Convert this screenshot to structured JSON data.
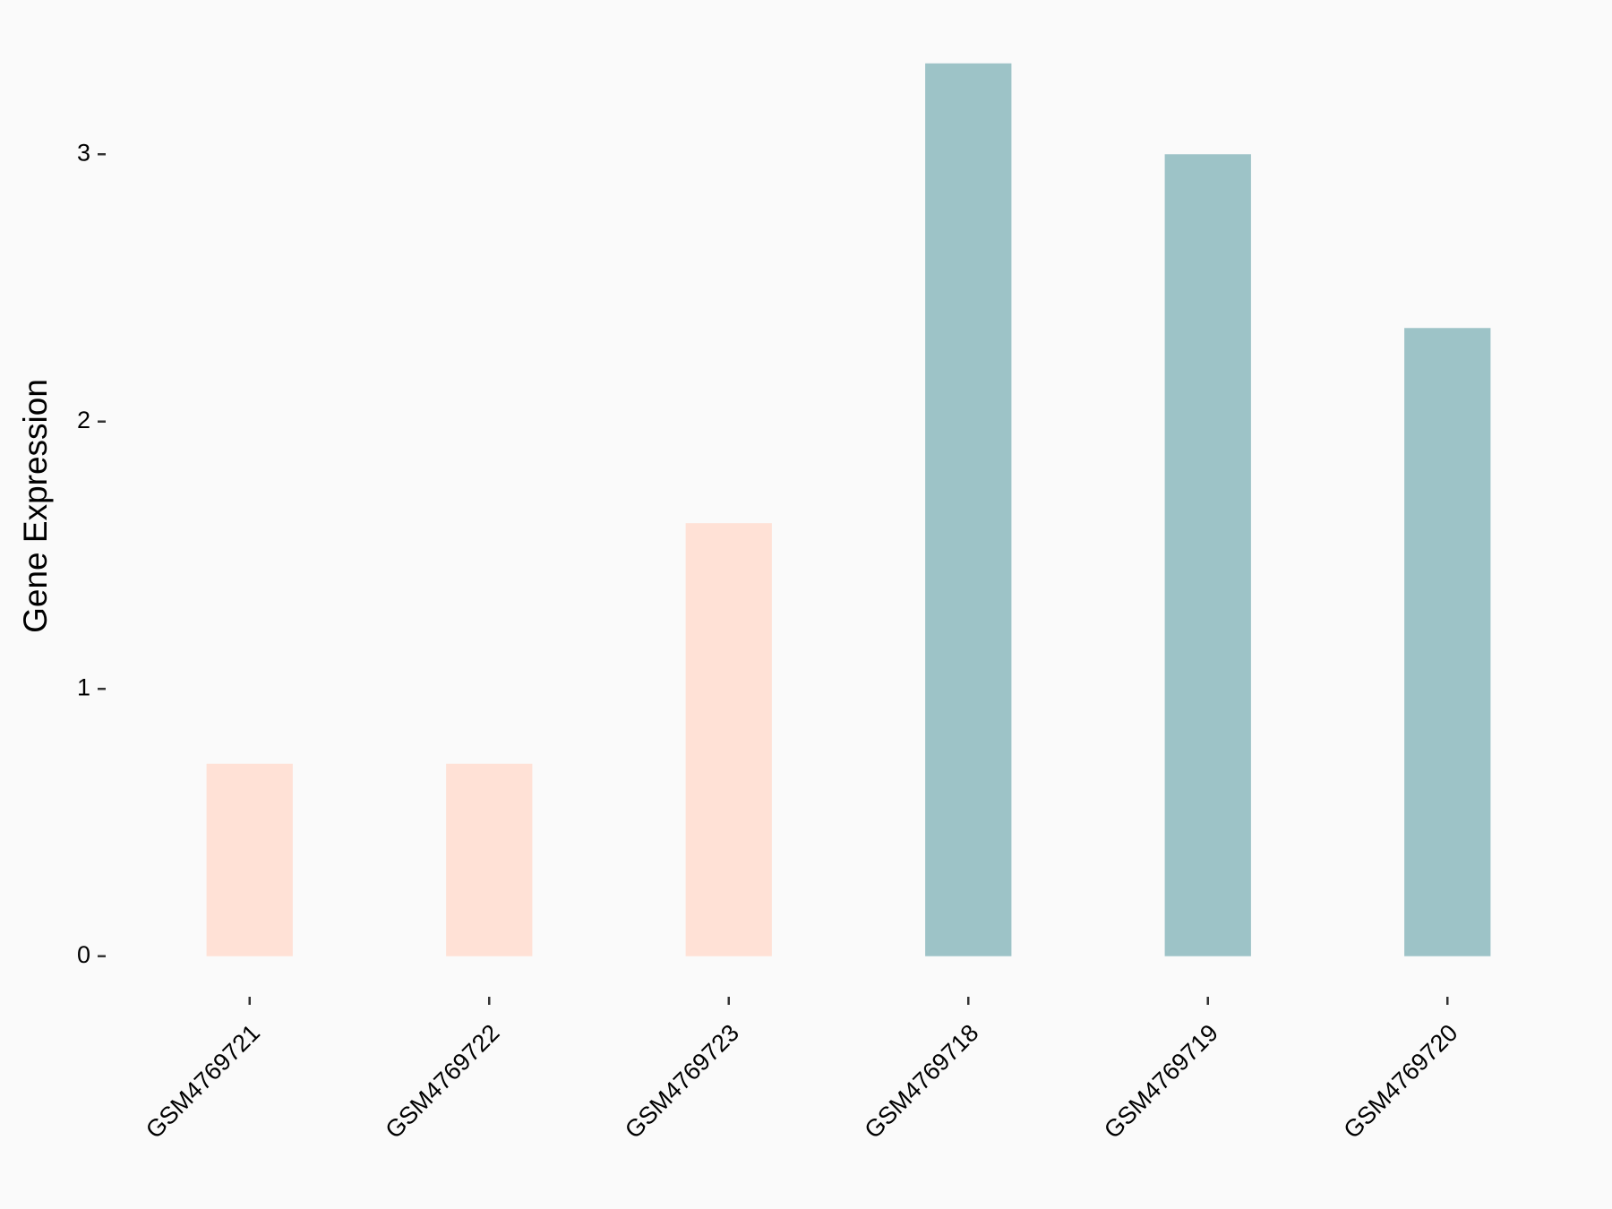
{
  "chart_data": {
    "type": "bar",
    "y_label": "Gene Expression",
    "categories": [
      "GSM4769721",
      "GSM4769722",
      "GSM4769723",
      "GSM4769718",
      "GSM4769719",
      "GSM4769720"
    ],
    "values": [
      0.72,
      0.72,
      1.62,
      3.34,
      3.0,
      2.35
    ],
    "colors": [
      "#ffe1d6",
      "#ffe1d6",
      "#ffe1d6",
      "#9dc3c7",
      "#9dc3c7",
      "#9dc3c7"
    ],
    "ylim": [
      -0.135,
      3.5
    ],
    "yticks": [
      0,
      1,
      2,
      3
    ]
  }
}
